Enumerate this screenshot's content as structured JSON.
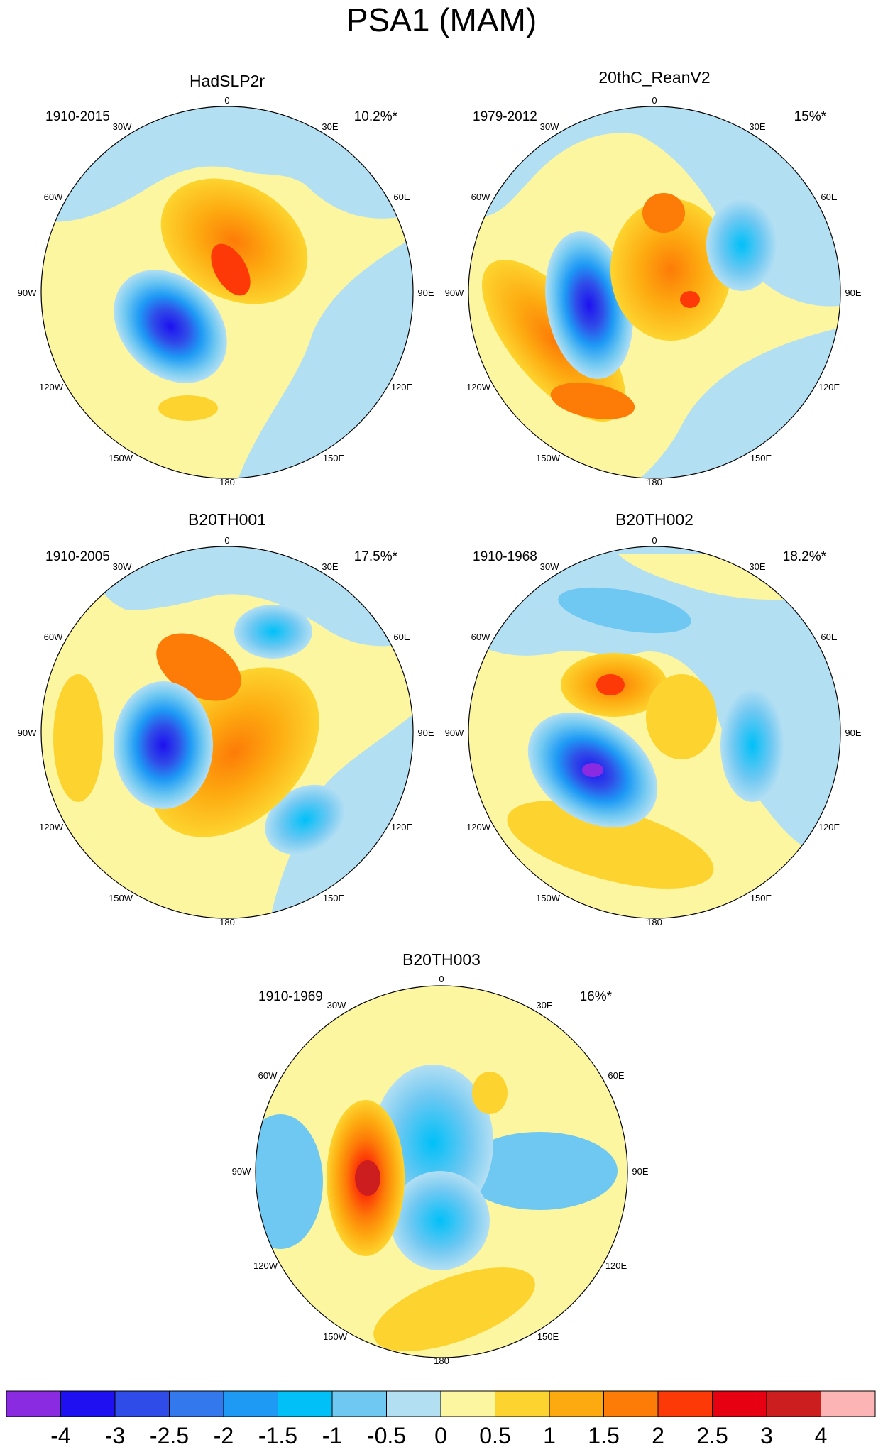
{
  "figure_title": "PSA1 (MAM)",
  "chart_data": {
    "type": "contour_map",
    "projection": "south-polar-stereographic",
    "title": "PSA1 (MAM)",
    "longitude_labels": [
      "0",
      "30E",
      "60E",
      "90E",
      "120E",
      "150E",
      "180",
      "150W",
      "120W",
      "90W",
      "60W",
      "30W"
    ],
    "panels": [
      {
        "name": "HadSLP2r",
        "period": "1910-2015",
        "variance": "10.2%*",
        "features": [
          {
            "sector_lon": -115,
            "level": -4,
            "sign": "negative"
          },
          {
            "sector_lon": 10,
            "level": 2,
            "sign": "positive"
          },
          {
            "sector_lon": 160,
            "level": 0.5,
            "sign": "positive"
          }
        ]
      },
      {
        "name": "20thC_ReanV2",
        "period": "1979-2012",
        "variance": "15%*",
        "features": [
          {
            "sector_lon": -100,
            "level": -3.5,
            "sign": "negative"
          },
          {
            "sector_lon": 20,
            "level": 2.5,
            "sign": "positive"
          },
          {
            "sector_lon": 60,
            "level": -1.5,
            "sign": "negative"
          },
          {
            "sector_lon": -150,
            "level": 2,
            "sign": "positive"
          }
        ]
      },
      {
        "name": "B20TH001",
        "period": "1910-2005",
        "variance": "17.5%*",
        "features": [
          {
            "sector_lon": -100,
            "level": -3.5,
            "sign": "negative"
          },
          {
            "sector_lon": -30,
            "level": 2,
            "sign": "positive"
          },
          {
            "sector_lon": 140,
            "level": -1.5,
            "sign": "negative"
          },
          {
            "sector_lon": 40,
            "level": -1.5,
            "sign": "negative"
          }
        ]
      },
      {
        "name": "B20TH002",
        "period": "1910-1968",
        "variance": "18.2%*",
        "features": [
          {
            "sector_lon": -115,
            "level": -4,
            "sign": "negative"
          },
          {
            "sector_lon": -40,
            "level": 2.5,
            "sign": "positive"
          },
          {
            "sector_lon": 95,
            "level": -1.5,
            "sign": "negative"
          },
          {
            "sector_lon": -150,
            "level": 1,
            "sign": "positive"
          }
        ]
      },
      {
        "name": "B20TH003",
        "period": "1910-1969",
        "variance": "16%*",
        "features": [
          {
            "sector_lon": -85,
            "level": 3.5,
            "sign": "positive"
          },
          {
            "sector_lon": -150,
            "level": -1.5,
            "sign": "negative"
          },
          {
            "sector_lon": 0,
            "level": -1,
            "sign": "negative"
          },
          {
            "sector_lon": 170,
            "level": 1,
            "sign": "positive"
          }
        ]
      }
    ],
    "colorbar": {
      "labels": [
        "-4",
        "-3",
        "-2.5",
        "-2",
        "-1.5",
        "-1",
        "-0.5",
        "0",
        "0.5",
        "1",
        "1.5",
        "2",
        "2.5",
        "3",
        "4"
      ],
      "colors": [
        "#8a2be2",
        "#1e10f0",
        "#2f4ce8",
        "#3478ee",
        "#1e9af5",
        "#00c0f8",
        "#6fc8f2",
        "#b3dff3",
        "#fdf6a1",
        "#fdd42f",
        "#fdaa10",
        "#fd7b07",
        "#fd3a07",
        "#e60012",
        "#cc1e1e",
        "#fdb4b4"
      ]
    }
  }
}
